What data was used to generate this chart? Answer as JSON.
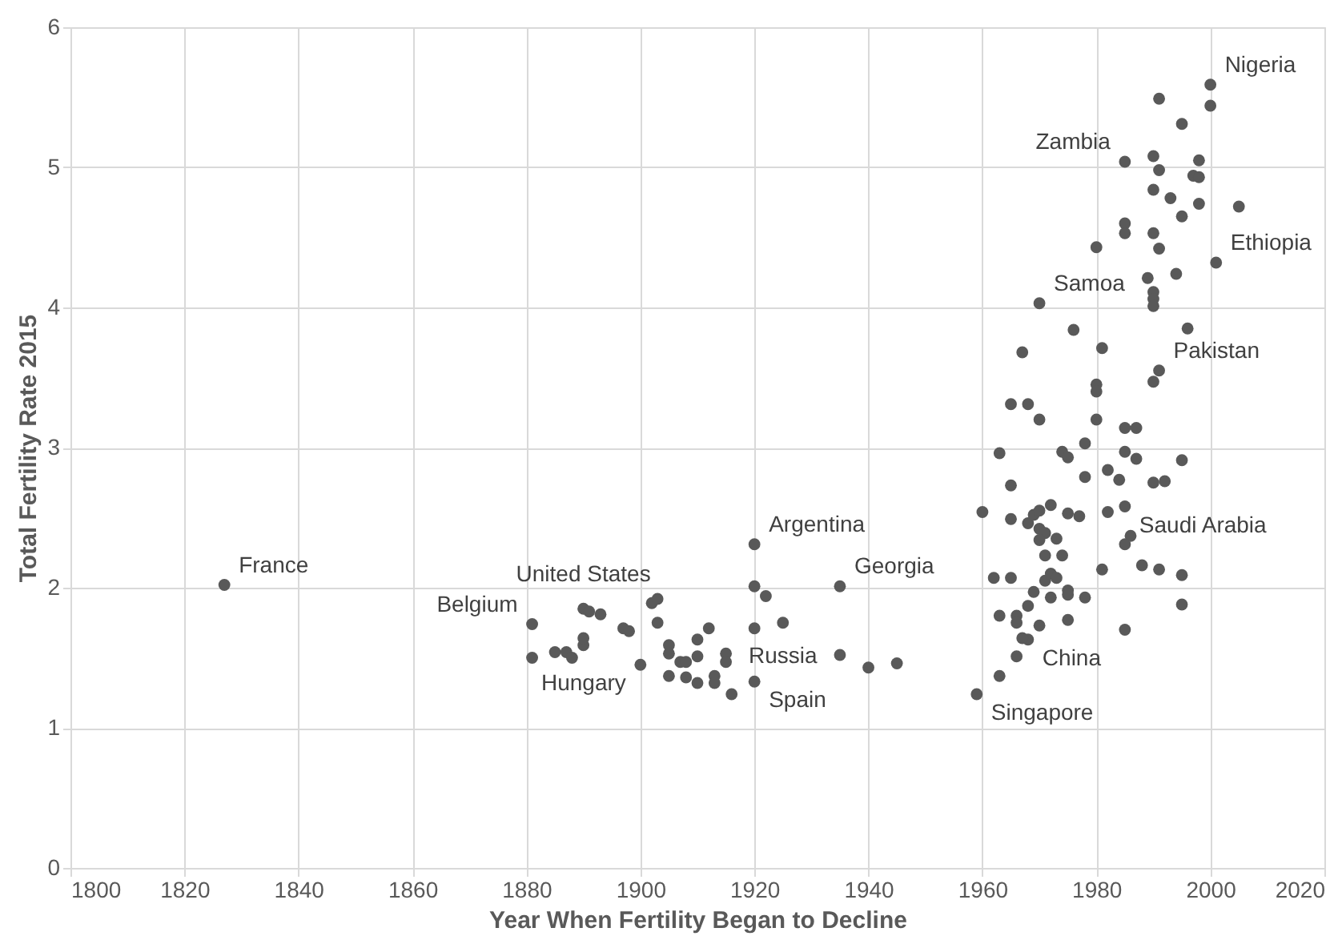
{
  "chart_data": {
    "type": "scatter",
    "xlabel": "Year When Fertility Began to Decline",
    "ylabel": "Total Fertility Rate 2015",
    "xlim": [
      1800,
      2020
    ],
    "xticks": [
      1800,
      1820,
      1840,
      1860,
      1880,
      1900,
      1920,
      1940,
      1960,
      1980,
      2000,
      2020
    ],
    "ylim": [
      0,
      6
    ],
    "yticks": [
      0,
      1,
      2,
      3,
      4,
      5,
      6
    ],
    "grid": true,
    "marker": "circle",
    "series": [
      {
        "color": "#595959",
        "x": [
          1827,
          1881,
          1890,
          1891,
          1893,
          1900,
          1920,
          1935,
          1925,
          1920,
          1881,
          1885,
          1887,
          1888,
          1890,
          1890,
          1897,
          1898,
          1902,
          1903,
          1903,
          1905,
          1905,
          1907,
          1908,
          1910,
          1910,
          1912,
          1915,
          1915,
          1905,
          1908,
          1910,
          1913,
          1913,
          1916,
          1920,
          1922,
          1920,
          1935,
          1940,
          1945,
          2000,
          1991,
          2000,
          1995,
          1985,
          1990,
          1998,
          1991,
          1997,
          1998,
          1990,
          1993,
          1998,
          2005,
          1995,
          1985,
          1985,
          1990,
          1980,
          1991,
          2001,
          1989,
          1994,
          1990,
          1990,
          1990,
          1970,
          1976,
          1996,
          1967,
          1981,
          1991,
          1990,
          1980,
          1980,
          1965,
          1968,
          1970,
          1980,
          1985,
          1987,
          1963,
          1974,
          1975,
          1978,
          1985,
          1987,
          1995,
          1978,
          1982,
          1984,
          1990,
          1992,
          1965,
          1960,
          1965,
          1968,
          1969,
          1970,
          1972,
          1975,
          1977,
          1982,
          1985,
          1986,
          1985,
          1970,
          1971,
          1973,
          1970,
          1971,
          1974,
          1981,
          1988,
          1991,
          1995,
          1962,
          1965,
          1971,
          1972,
          1973,
          1969,
          1972,
          1975,
          1975,
          1978,
          1995,
          1963,
          1966,
          1966,
          1968,
          1970,
          1975,
          1985,
          1968,
          1967,
          1966,
          1963,
          1959
        ],
        "values": [
          2.02,
          1.74,
          1.85,
          1.83,
          1.81,
          1.45,
          2.31,
          2.01,
          1.75,
          1.33,
          1.5,
          1.54,
          1.54,
          1.5,
          1.59,
          1.64,
          1.71,
          1.69,
          1.89,
          1.92,
          1.75,
          1.59,
          1.53,
          1.47,
          1.47,
          1.63,
          1.51,
          1.71,
          1.53,
          1.47,
          1.37,
          1.36,
          1.32,
          1.37,
          1.32,
          1.24,
          2.01,
          1.94,
          1.71,
          1.52,
          1.43,
          1.46,
          5.59,
          5.49,
          5.44,
          5.31,
          5.04,
          5.08,
          5.05,
          4.98,
          4.94,
          4.93,
          4.84,
          4.78,
          4.74,
          4.72,
          4.65,
          4.6,
          4.53,
          4.53,
          4.43,
          4.42,
          4.32,
          4.21,
          4.24,
          4.11,
          4.06,
          4.01,
          4.03,
          3.84,
          3.85,
          3.68,
          3.71,
          3.55,
          3.47,
          3.45,
          3.4,
          3.31,
          3.31,
          3.2,
          3.2,
          3.14,
          3.14,
          2.96,
          2.97,
          2.93,
          3.03,
          2.97,
          2.92,
          2.91,
          2.79,
          2.84,
          2.77,
          2.75,
          2.76,
          2.73,
          2.54,
          2.49,
          2.46,
          2.52,
          2.55,
          2.59,
          2.53,
          2.51,
          2.54,
          2.58,
          2.37,
          2.31,
          2.42,
          2.39,
          2.35,
          2.34,
          2.23,
          2.23,
          2.13,
          2.16,
          2.13,
          2.09,
          2.07,
          2.07,
          2.05,
          2.1,
          2.07,
          1.97,
          1.93,
          1.98,
          1.95,
          1.93,
          1.88,
          1.8,
          1.8,
          1.75,
          1.87,
          1.73,
          1.77,
          1.7,
          1.63,
          1.64,
          1.51,
          1.37,
          1.24
        ]
      }
    ],
    "annotations": [
      {
        "text": "France",
        "x": 1827,
        "y": 2.02
      },
      {
        "text": "Belgium",
        "x": 1881,
        "y": 1.74
      },
      {
        "text": "United States",
        "x": 1890,
        "y": 1.85
      },
      {
        "text": "Hungary",
        "x": 1900,
        "y": 1.45
      },
      {
        "text": "Argentina",
        "x": 1920,
        "y": 2.31
      },
      {
        "text": "Georgia",
        "x": 1935,
        "y": 2.01
      },
      {
        "text": "Russia",
        "x": 1925,
        "y": 1.75
      },
      {
        "text": "Spain",
        "x": 1920,
        "y": 1.33
      },
      {
        "text": "Nigeria",
        "x": 2000,
        "y": 5.59
      },
      {
        "text": "Zambia",
        "x": 1985,
        "y": 5.04
      },
      {
        "text": "Ethiopia",
        "x": 2001,
        "y": 4.32
      },
      {
        "text": "Samoa",
        "x": 1970,
        "y": 4.03
      },
      {
        "text": "Pakistan",
        "x": 1991,
        "y": 3.55
      },
      {
        "text": "Saudi Arabia",
        "x": 1985,
        "y": 2.58
      },
      {
        "text": "China",
        "x": 1968,
        "y": 1.63
      },
      {
        "text": "Singapore",
        "x": 1959,
        "y": 1.24
      }
    ]
  }
}
